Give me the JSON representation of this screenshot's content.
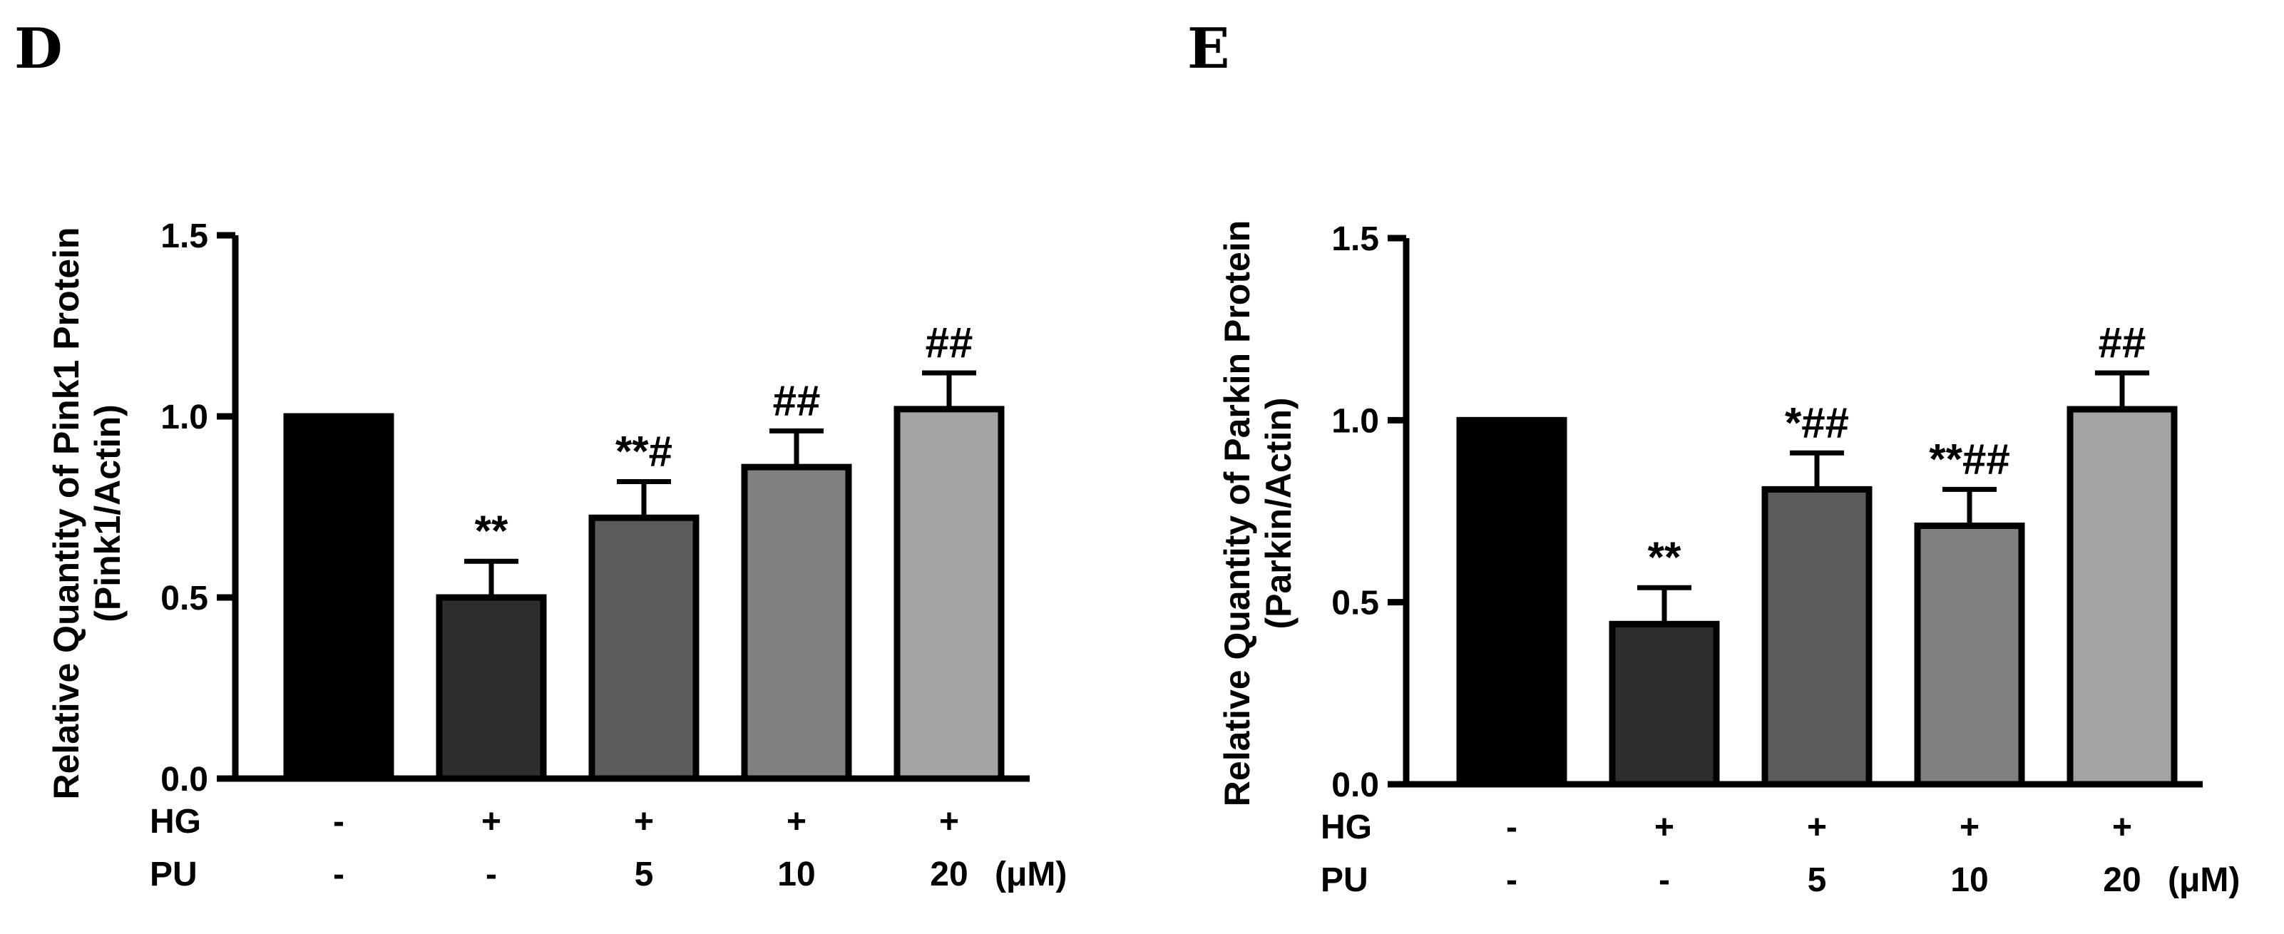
{
  "chart_data": [
    {
      "type": "bar",
      "panel": "D",
      "ylabel_line1": "Relative Quantity of Pink1 Protein",
      "ylabel_line2": "(Pink1/Actin)",
      "ylim": [
        0,
        1.5
      ],
      "yticks": [
        "0.0",
        "0.5",
        "1.0",
        "1.5"
      ],
      "ytick_values": [
        0,
        0.5,
        1.0,
        1.5
      ],
      "values": [
        1.0,
        0.5,
        0.72,
        0.86,
        1.02
      ],
      "errors": [
        0,
        0.1,
        0.1,
        0.1,
        0.1
      ],
      "significance": [
        "",
        "**",
        "**#",
        "##",
        "##"
      ],
      "colors": [
        "#000000",
        "#2e2e2e",
        "#5c5c5c",
        "#808080",
        "#a3a3a6"
      ],
      "conditions": [
        {
          "label": "HG",
          "values": [
            "-",
            "+",
            "+",
            "+",
            "+"
          ]
        },
        {
          "label": "PU",
          "values": [
            "-",
            "-",
            "5",
            "10",
            "20"
          ],
          "unit": "(μM)"
        }
      ]
    },
    {
      "type": "bar",
      "panel": "E",
      "ylabel_line1": "Relative Quantity of Parkin Protein",
      "ylabel_line2": "(Parkin/Actin)",
      "ylim": [
        0,
        1.5
      ],
      "yticks": [
        "0.0",
        "0.5",
        "1.0",
        "1.5"
      ],
      "ytick_values": [
        0,
        0.5,
        1.0,
        1.5
      ],
      "values": [
        1.0,
        0.44,
        0.81,
        0.71,
        1.03
      ],
      "errors": [
        0,
        0.1,
        0.1,
        0.1,
        0.1
      ],
      "significance": [
        "",
        "**",
        "*##",
        "**##",
        "##"
      ],
      "colors": [
        "#000000",
        "#2e2e2e",
        "#5c5c5c",
        "#808080",
        "#a3a3a6"
      ],
      "conditions": [
        {
          "label": "HG",
          "values": [
            "-",
            "+",
            "+",
            "+",
            "+"
          ]
        },
        {
          "label": "PU",
          "values": [
            "-",
            "-",
            "5",
            "10",
            "20"
          ],
          "unit": "(μM)"
        }
      ]
    }
  ]
}
